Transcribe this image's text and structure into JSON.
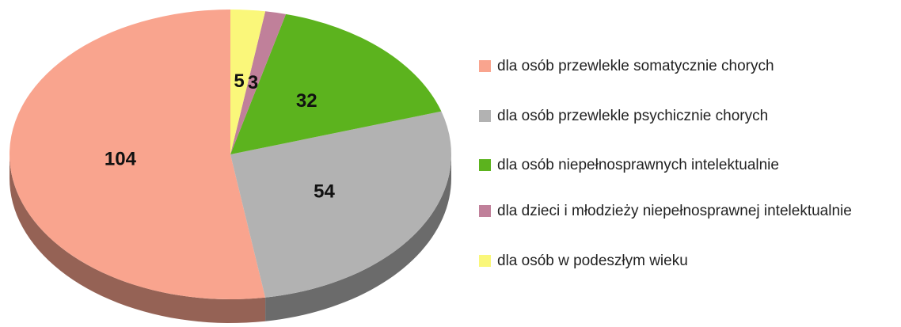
{
  "chart_data": {
    "type": "pie",
    "categories": [
      "dla osób przewlekle somatycznie chorych",
      "dla osób przewlekle psychicznie chorych",
      "dla osób niepełnosprawnych intelektualnie",
      "dla dzieci i młodzieży niepełnosprawnej intelektualnie",
      "dla osób w podeszłym wieku"
    ],
    "values": [
      104,
      54,
      32,
      3,
      5
    ],
    "colors": [
      "#f9a48e",
      "#b2b2b2",
      "#5cb31e",
      "#c0809a",
      "#faf77a"
    ],
    "legend": "right"
  }
}
